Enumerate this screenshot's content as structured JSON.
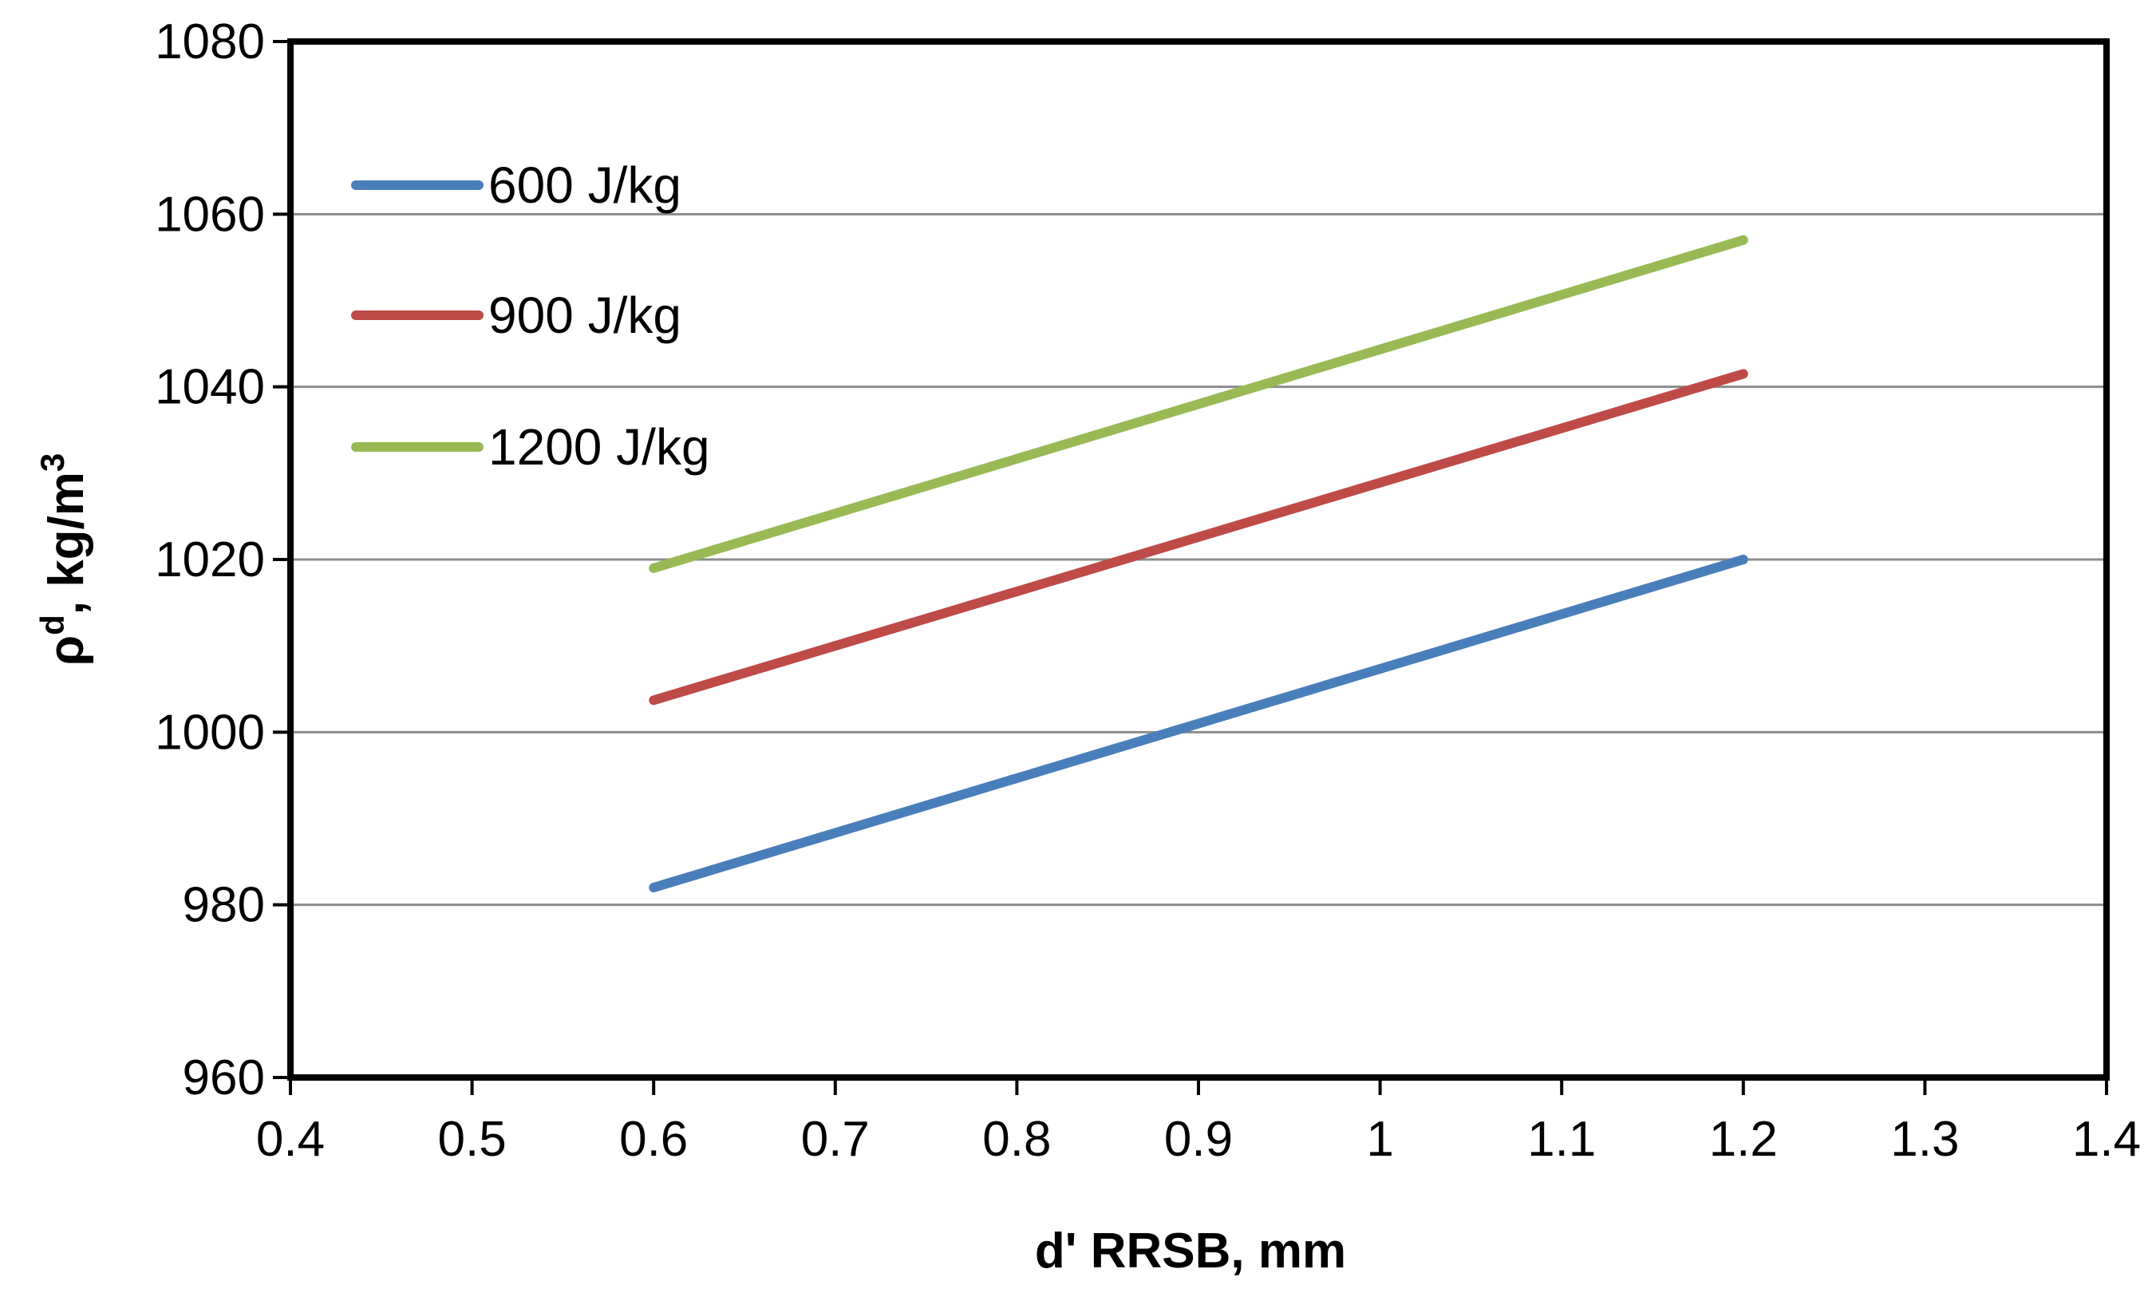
{
  "chart_data": {
    "type": "line",
    "title": "",
    "xlabel": "d' RRSB, mm",
    "ylabel_main": "ρ",
    "ylabel_sup": "d",
    "ylabel_rest": ", kg/m",
    "ylabel_sup2": "3",
    "xlim": [
      0.4,
      1.4
    ],
    "ylim": [
      960,
      1080
    ],
    "xticks": [
      0.4,
      0.5,
      0.6,
      0.7,
      0.8,
      0.9,
      1,
      1.1,
      1.2,
      1.3,
      1.4
    ],
    "xtick_labels": [
      "0.4",
      "0.5",
      "0.6",
      "0.7",
      "0.8",
      "0.9",
      "1",
      "1.1",
      "1.2",
      "1.3",
      "1.4"
    ],
    "yticks": [
      960,
      980,
      1000,
      1020,
      1040,
      1060,
      1080
    ],
    "ytick_labels": [
      "960",
      "980",
      "1000",
      "1020",
      "1040",
      "1060",
      "1080"
    ],
    "grid": "horizontal",
    "legend_position": "top-left",
    "series": [
      {
        "name": "600 J/kg",
        "color": "#4a7ebb",
        "x": [
          0.6,
          1.2
        ],
        "y": [
          982,
          1020
        ]
      },
      {
        "name": "900 J/kg",
        "color": "#be4b48",
        "x": [
          0.6,
          1.2
        ],
        "y": [
          1003.7,
          1041.5
        ]
      },
      {
        "name": "1200 J/kg",
        "color": "#98b954",
        "x": [
          0.6,
          1.2
        ],
        "y": [
          1019,
          1057
        ]
      }
    ]
  }
}
